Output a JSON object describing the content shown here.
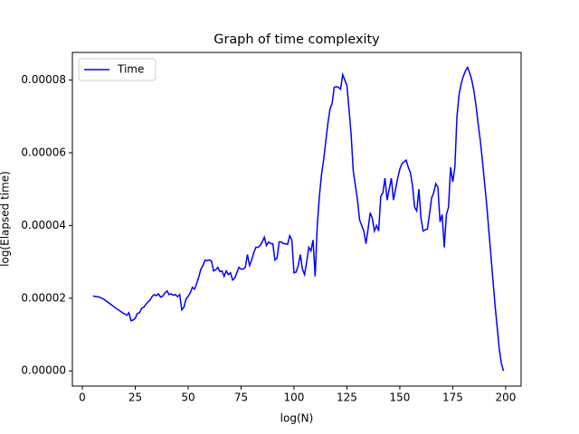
{
  "chart_data": {
    "type": "line",
    "title": "Graph of time complexity",
    "xlabel": "log(N)",
    "ylabel": "log(Elapsed time)",
    "x": [
      5,
      8,
      10,
      13,
      16,
      19,
      21,
      22,
      23,
      24,
      25,
      26,
      27,
      28,
      29,
      30,
      32,
      33,
      34,
      35,
      36,
      37,
      38,
      39,
      40,
      41,
      42,
      43,
      44,
      45,
      46,
      47,
      48,
      49,
      50,
      51,
      52,
      53,
      54,
      55,
      56,
      57,
      58,
      59,
      60,
      61,
      62,
      63,
      64,
      65,
      66,
      67,
      68,
      69,
      70,
      71,
      72,
      73,
      74,
      75,
      76,
      77,
      78,
      79,
      80,
      81,
      82,
      83,
      84,
      85,
      86,
      87,
      88,
      89,
      90,
      91,
      92,
      93,
      94,
      95,
      96,
      97,
      98,
      99,
      100,
      101,
      102,
      103,
      104,
      105,
      106,
      107,
      108,
      109,
      110,
      111,
      112,
      113,
      114,
      115,
      116,
      117,
      118,
      119,
      120,
      121,
      122,
      123,
      124,
      125,
      126,
      127,
      128,
      129,
      130,
      131,
      132,
      133,
      134,
      135,
      136,
      137,
      138,
      139,
      140,
      141,
      142,
      143,
      144,
      145,
      146,
      147,
      148,
      149,
      150,
      151,
      152,
      153,
      154,
      155,
      156,
      157,
      158,
      159,
      160,
      161,
      162,
      163,
      164,
      165,
      166,
      167,
      168,
      169,
      170,
      171,
      172,
      173,
      174,
      175,
      176,
      177,
      178,
      179,
      180,
      181,
      182,
      183,
      184,
      185,
      186,
      187,
      188,
      189,
      190,
      191,
      192,
      193,
      194,
      195,
      196,
      197,
      198,
      199
    ],
    "series": [
      {
        "name": "Time",
        "color": "#0000ff",
        "values": [
          2.06e-05,
          2.03e-05,
          1.98e-05,
          1.85e-05,
          1.72e-05,
          1.6e-05,
          1.53e-05,
          1.6e-05,
          1.38e-05,
          1.4e-05,
          1.45e-05,
          1.58e-05,
          1.6e-05,
          1.72e-05,
          1.75e-05,
          1.83e-05,
          1.95e-05,
          2.05e-05,
          2.1e-05,
          2.07e-05,
          2.12e-05,
          2.03e-05,
          2.06e-05,
          2.14e-05,
          2.2e-05,
          2.1e-05,
          2.12e-05,
          2.08e-05,
          2.1e-05,
          2.04e-05,
          2.1e-05,
          1.68e-05,
          1.75e-05,
          1.98e-05,
          2.05e-05,
          2.15e-05,
          2.3e-05,
          2.25e-05,
          2.4e-05,
          2.58e-05,
          2.8e-05,
          2.9e-05,
          3.05e-05,
          3.03e-05,
          3.05e-05,
          3.03e-05,
          2.75e-05,
          2.78e-05,
          2.85e-05,
          2.73e-05,
          2.75e-05,
          2.6e-05,
          2.75e-05,
          2.65e-05,
          2.7e-05,
          2.5e-05,
          2.55e-05,
          2.7e-05,
          2.85e-05,
          2.8e-05,
          2.8e-05,
          2.85e-05,
          3.2e-05,
          2.9e-05,
          3.05e-05,
          3.25e-05,
          3.4e-05,
          3.4e-05,
          3.45e-05,
          3.55e-05,
          3.68e-05,
          3.45e-05,
          3.55e-05,
          3.5e-05,
          3.5e-05,
          3.05e-05,
          3.1e-05,
          3.55e-05,
          3.55e-05,
          3.5e-05,
          3.5e-05,
          3.48e-05,
          3.72e-05,
          3.6e-05,
          2.7e-05,
          2.72e-05,
          2.9e-05,
          3.2e-05,
          2.8e-05,
          2.65e-05,
          3e-05,
          3.4e-05,
          3.3e-05,
          3.6e-05,
          2.6e-05,
          4e-05,
          4.8e-05,
          5.4e-05,
          5.8e-05,
          6.3e-05,
          6.8e-05,
          7.2e-05,
          7.35e-05,
          7.8e-05,
          7.82e-05,
          7.8e-05,
          7.75e-05,
          8.15e-05,
          8e-05,
          7.85e-05,
          7.2e-05,
          6.5e-05,
          5.5e-05,
          5.1e-05,
          4.7e-05,
          4.15e-05,
          4e-05,
          3.85e-05,
          3.5e-05,
          3.9e-05,
          4.35e-05,
          4.2e-05,
          3.85e-05,
          4e-05,
          3.85e-05,
          4.8e-05,
          4.9e-05,
          5.3e-05,
          4.7e-05,
          5e-05,
          5.3e-05,
          4.7e-05,
          5e-05,
          5.3e-05,
          5.55e-05,
          5.7e-05,
          5.75e-05,
          5.8e-05,
          5.6e-05,
          5.45e-05,
          5.1e-05,
          4.5e-05,
          4.4e-05,
          5e-05,
          4.2e-05,
          3.85e-05,
          3.88e-05,
          3.9e-05,
          4.3e-05,
          4.75e-05,
          4.9e-05,
          5.15e-05,
          5.05e-05,
          4.1e-05,
          4.3e-05,
          3.4e-05,
          4.3e-05,
          4.5e-05,
          5.6e-05,
          5.2e-05,
          5.6e-05,
          7e-05,
          7.6e-05,
          7.9e-05,
          8.1e-05,
          8.25e-05,
          8.35e-05,
          8.2e-05,
          8e-05,
          7.7e-05,
          7.3e-05,
          6.8e-05,
          6.35e-05,
          5.8e-05,
          5.2e-05,
          4.6e-05,
          3.9e-05,
          3.2e-05,
          2.5e-05,
          1.8e-05,
          1.2e-05,
          6e-06,
          2e-06,
          0.0
        ]
      }
    ],
    "xlim": [
      -4.7,
      207.3
    ],
    "ylim": [
      -4.17e-06,
      8.76e-05
    ],
    "xticks": [
      0,
      25,
      50,
      75,
      100,
      125,
      150,
      175,
      200
    ],
    "yticks": [
      {
        "value": 0,
        "label": "0.00000"
      },
      {
        "value": 2e-05,
        "label": "0.00002"
      },
      {
        "value": 4e-05,
        "label": "0.00004"
      },
      {
        "value": 6e-05,
        "label": "0.00006"
      },
      {
        "value": 8e-05,
        "label": "0.00008"
      }
    ],
    "grid": false,
    "legend": "upper left"
  }
}
